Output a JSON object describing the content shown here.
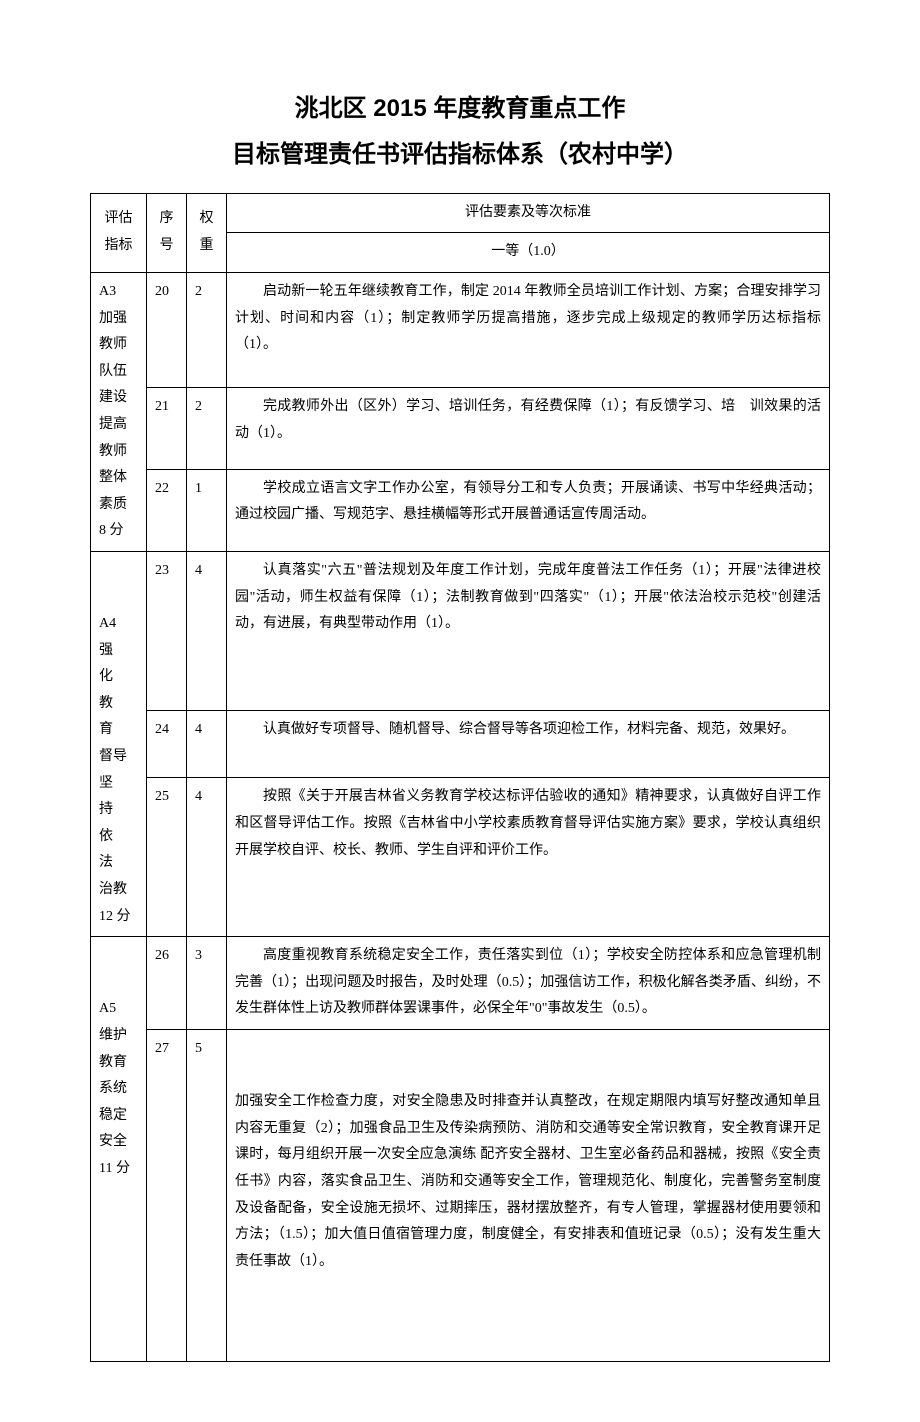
{
  "title_line_1": "洮北区 2015 年度教育重点工作",
  "title_line_2": "目标管理责任书评估指标体系（农村中学）",
  "headers": {
    "metric": "评估指标",
    "seq": "序号",
    "weight": "权重",
    "criteria": "评估要素及等次标准",
    "grade": "一等（1.0）"
  },
  "groups": [
    {
      "category": "A3\n加强\n教师\n队伍\n建设\n提高\n教师\n整体\n素质\n8 分",
      "rows": [
        {
          "seq": "20",
          "weight": "2",
          "content": "启动新一轮五年继续教育工作，制定 2014 年教师全员培训工作计划、方案；合理安排学习计划、时间和内容（1）；制定教师学历提高措施，逐步完成上级规定的教师学历达标指标（1）。"
        },
        {
          "seq": "21",
          "weight": "2",
          "content": "完成教师外出（区外）学习、培训任务，有经费保障（1）；有反馈学习、培　训效果的活动（1）。"
        },
        {
          "seq": "22",
          "weight": "1",
          "content": "学校成立语言文字工作办公室，有领导分工和专人负责；开展诵读、书写中华经典活动；通过校园广播、写规范字、悬挂横幅等形式开展普通话宣传周活动。"
        }
      ]
    },
    {
      "category": "\nA4\n强　化\n教　育\n督导\n坚　持\n依　法\n治教\n12 分",
      "rows": [
        {
          "seq": "23",
          "weight": "4",
          "content": "认真落实\"六五\"普法规划及年度工作计划，完成年度普法工作任务（1）；开展\"法律进校园\"活动，师生权益有保障（1）；法制教育做到\"四落实\"（1）；开展\"依法治校示范校\"创建活动，有进展，有典型带动作用（1）。"
        },
        {
          "seq": "24",
          "weight": "4",
          "content": "认真做好专项督导、随机督导、综合督导等各项迎检工作，材料完备、规范，效果好。"
        },
        {
          "seq": "25",
          "weight": "4",
          "content": "按照《关于开展吉林省义务教育学校达标评估验收的通知》精神要求，认真做好自评工作和区督导评估工作。按照《吉林省中小学校素质教育督导评估实施方案》要求，学校认真组织开展学校自评、校长、教师、学生自评和评价工作。"
        }
      ]
    },
    {
      "category": "\nA5\n维护\n教育\n系统\n稳定\n安全\n11 分",
      "rows": [
        {
          "seq": "26",
          "weight": "3",
          "content": "高度重视教育系统稳定安全工作，责任落实到位（1）；学校安全防控体系和应急管理机制完善（1）；出现问题及时报告，及时处理（0.5）；加强信访工作，积极化解各类矛盾、纠纷，不发生群体性上访及教师群体罢课事件，必保全年\"0\"事故发生（0.5）。"
        },
        {
          "seq": "27",
          "weight": "5",
          "content": "\n加强安全工作检查力度，对安全隐患及时排查并认真整改，在规定期限内填写好整改通知单且内容无重复（2）；加强食品卫生及传染病预防、消防和交通等安全常识教育，安全教育课开足课时，每月组织开展一次安全应急演练 配齐安全器材、卫生室必备药品和器械，按照《安全责任书》内容，落实食品卫生、消防和交通等安全工作，管理规范化、制度化，完善警务室制度及设备配备，安全设施无损坏、过期摔压，器材摆放整齐，有专人管理，掌握器材使用要领和方法；（1.5）；加大值日值宿管理力度，制度健全，有安排表和值班记录（0.5）；没有发生重大责任事故（1）。\n\n"
        }
      ]
    }
  ]
}
